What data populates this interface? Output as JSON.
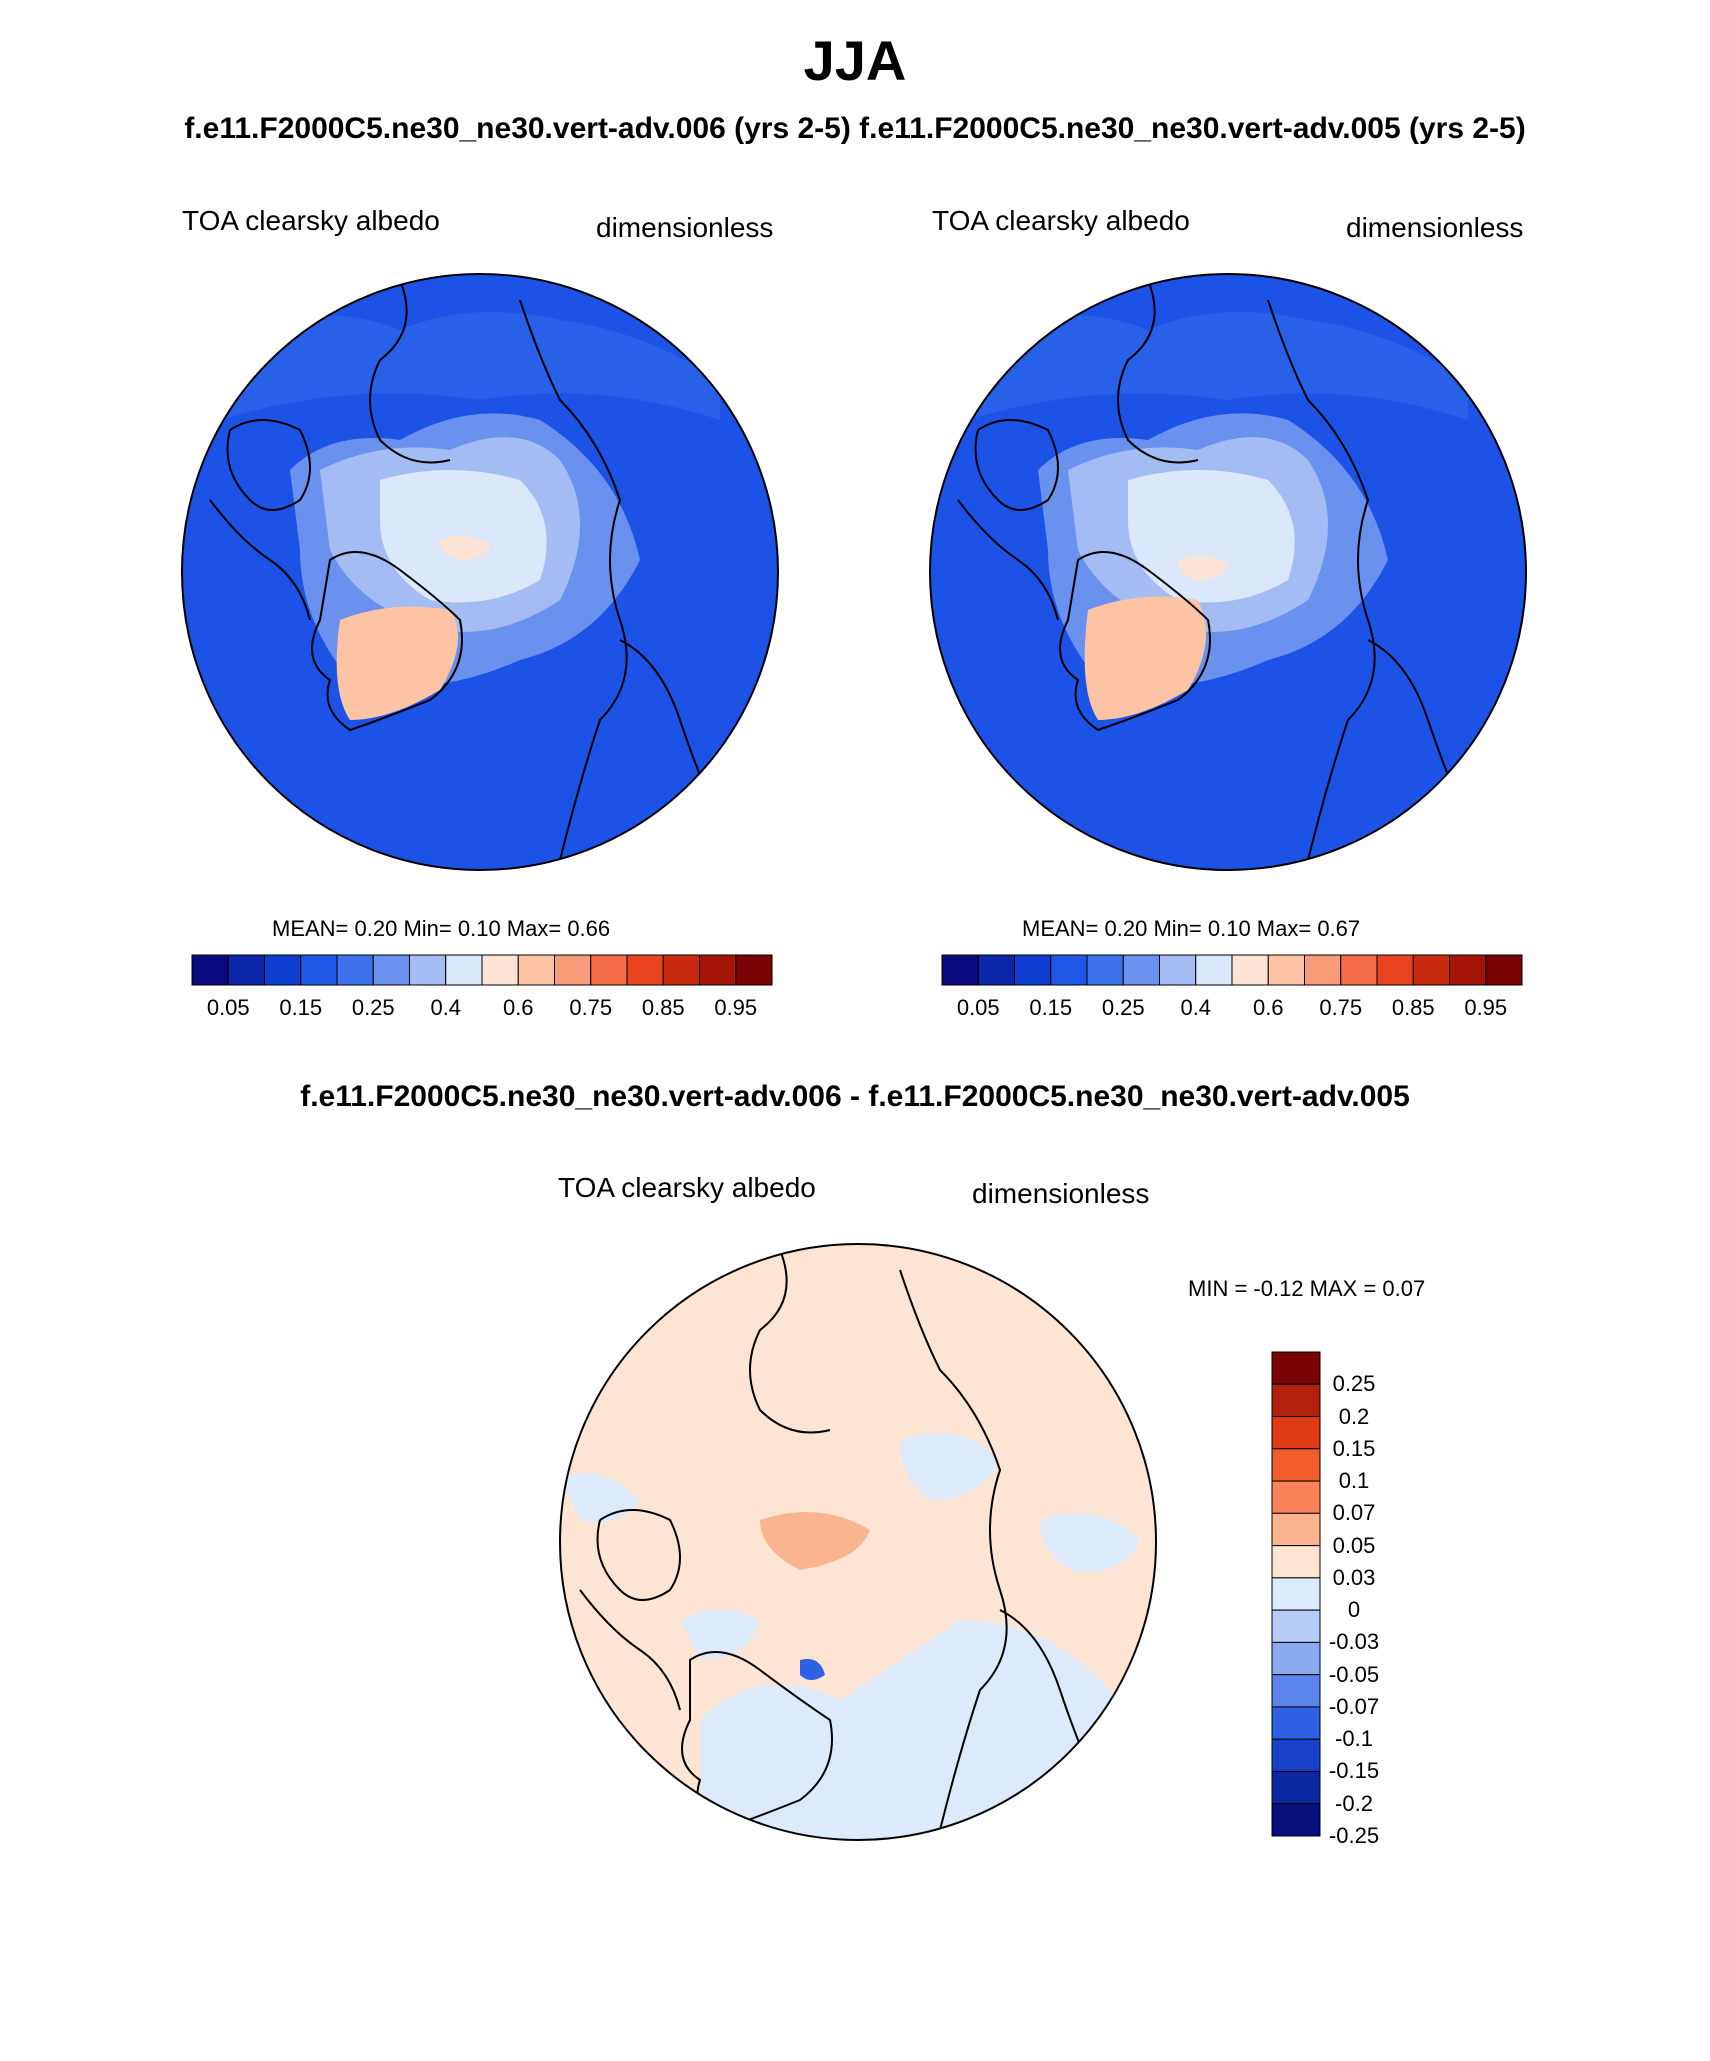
{
  "page": {
    "title": "JJA",
    "subtitle": "f.e11.F2000C5.ne30_ne30.vert-adv.006 (yrs 2-5) f.e11.F2000C5.ne30_ne30.vert-adv.005 (yrs 2-5)",
    "diff_title": "f.e11.F2000C5.ne30_ne30.vert-adv.006 - f.e11.F2000C5.ne30_ne30.vert-adv.005"
  },
  "panels": [
    {
      "variable": "TOA clearsky albedo",
      "units": "dimensionless",
      "stats": "MEAN=   0.20   Min=    0.10   Max=    0.66"
    },
    {
      "variable": "TOA clearsky albedo",
      "units": "dimensionless",
      "stats": "MEAN=   0.20   Min=    0.10   Max=    0.67"
    },
    {
      "variable": "TOA clearsky albedo",
      "units": "dimensionless",
      "stats": "MIN =  -0.12 MAX =    0.07"
    }
  ],
  "colorbar_main": {
    "colors": [
      "#0a0a7e",
      "#0b26a8",
      "#0f3fd0",
      "#1f58e6",
      "#3c72ec",
      "#6b91ee",
      "#a3bdf4",
      "#dbe7fb",
      "#fde3d3",
      "#fcc3a5",
      "#f99b78",
      "#f46b47",
      "#e9431f",
      "#c72a0f",
      "#a41508",
      "#7a0303"
    ],
    "ticks": [
      "0.05",
      "0.15",
      "0.25",
      "0.4",
      "0.6",
      "0.75",
      "0.85",
      "0.95"
    ]
  },
  "colorbar_diff": {
    "colors": [
      "#7a0303",
      "#b3200b",
      "#e03b14",
      "#f25d2d",
      "#f98457",
      "#fbb58e",
      "#fde4d3",
      "#ddeafb",
      "#b6cdf7",
      "#8aaaf1",
      "#5a85eb",
      "#2f61e4",
      "#1741c9",
      "#0c28a0",
      "#080f7e"
    ],
    "ticks": [
      "0.25",
      "0.2",
      "0.15",
      "0.1",
      "0.07",
      "0.05",
      "0.03",
      "0",
      "-0.03",
      "-0.05",
      "-0.07",
      "-0.1",
      "-0.15",
      "-0.2",
      "-0.25"
    ]
  }
}
